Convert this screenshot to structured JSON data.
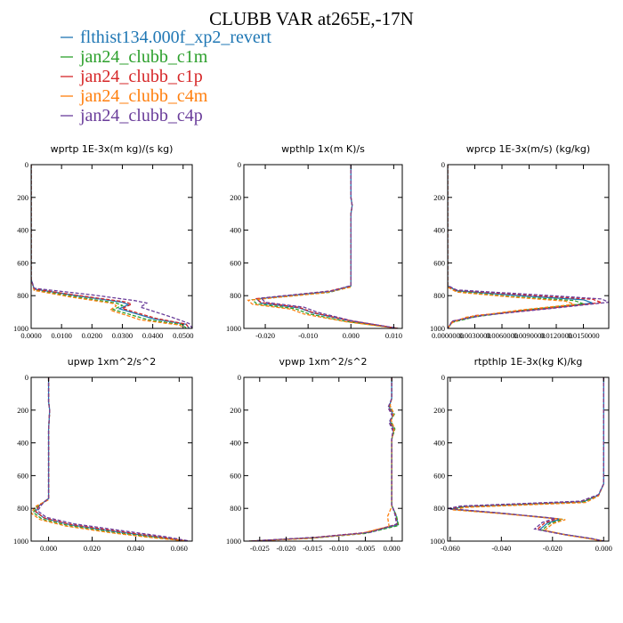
{
  "title": "CLUBB VAR at265E,-17N",
  "legend": [
    {
      "label": "flthist134.000f_xp2_revert",
      "color": "#1f77b4",
      "dash": "solid"
    },
    {
      "label": "jan24_clubb_c1m",
      "color": "#2ca02c",
      "dash": "dashed"
    },
    {
      "label": "jan24_clubb_c1p",
      "color": "#d62728",
      "dash": "dashed"
    },
    {
      "label": "jan24_clubb_c4m",
      "color": "#ff7f0e",
      "dash": "dashed"
    },
    {
      "label": "jan24_clubb_c4p",
      "color": "#6a3d9a",
      "dash": "dashed"
    }
  ],
  "chart_data": [
    {
      "type": "line",
      "title": "wprtp  1E-3x(m kg)/(s kg)",
      "xlim": [
        0,
        0.053
      ],
      "ylim": [
        1000,
        0
      ],
      "xticks": [
        0,
        0.01,
        0.02,
        0.03,
        0.04,
        0.05
      ],
      "xtick_labels": [
        "0.0000",
        "0.0100",
        "0.0200",
        "0.0300",
        "0.0400",
        "0.0500"
      ],
      "yticks": [
        0,
        200,
        400,
        600,
        800,
        1000
      ],
      "series": [
        {
          "name": "flthist134.000f_xp2_revert",
          "x": [
            0,
            0,
            0.001,
            0.015,
            0.03,
            0.032,
            0.029,
            0.04,
            0.051,
            0.052
          ],
          "y": [
            0,
            700,
            760,
            800,
            840,
            855,
            880,
            940,
            975,
            1000
          ]
        },
        {
          "name": "jan24_clubb_c1m",
          "x": [
            0,
            0,
            0.001,
            0.014,
            0.028,
            0.03,
            0.027,
            0.038,
            0.05,
            0.051
          ],
          "y": [
            0,
            700,
            765,
            805,
            845,
            860,
            885,
            945,
            978,
            1000
          ]
        },
        {
          "name": "jan24_clubb_c1p",
          "x": [
            0,
            0,
            0.001,
            0.016,
            0.031,
            0.033,
            0.03,
            0.041,
            0.051,
            0.052
          ],
          "y": [
            0,
            700,
            760,
            800,
            838,
            852,
            878,
            938,
            974,
            1000
          ]
        },
        {
          "name": "jan24_clubb_c4m",
          "x": [
            0,
            0,
            0.001,
            0.013,
            0.027,
            0.028,
            0.026,
            0.036,
            0.049,
            0.05
          ],
          "y": [
            0,
            700,
            768,
            808,
            848,
            862,
            888,
            948,
            980,
            1000
          ]
        },
        {
          "name": "jan24_clubb_c4p",
          "x": [
            0,
            0,
            0.001,
            0.02,
            0.034,
            0.038,
            0.036,
            0.046,
            0.052,
            0.053
          ],
          "y": [
            0,
            700,
            755,
            795,
            830,
            845,
            870,
            930,
            970,
            1000
          ]
        }
      ]
    },
    {
      "type": "line",
      "title": "wpthlp  1x(m K)/s",
      "xlim": [
        -0.025,
        0.012
      ],
      "ylim": [
        1000,
        0
      ],
      "xticks": [
        -0.02,
        -0.01,
        0,
        0.01
      ],
      "xtick_labels": [
        "-0.020",
        "-0.010",
        "0.000",
        "0.010"
      ],
      "yticks": [
        0,
        200,
        400,
        600,
        800,
        1000
      ],
      "series": [
        {
          "name": "flthist134.000f_xp2_revert",
          "x": [
            0,
            0,
            0.0003,
            0,
            0,
            -0.005,
            -0.022,
            -0.021,
            -0.012,
            -0.009,
            0.0,
            0.011
          ],
          "y": [
            0,
            200,
            250,
            300,
            740,
            775,
            820,
            845,
            875,
            905,
            955,
            1000
          ]
        },
        {
          "name": "jan24_clubb_c1m",
          "x": [
            0,
            0,
            0.0003,
            0,
            0,
            -0.005,
            -0.023,
            -0.022,
            -0.013,
            -0.01,
            -0.001,
            0.011
          ],
          "y": [
            0,
            200,
            250,
            300,
            745,
            780,
            825,
            850,
            880,
            910,
            958,
            1000
          ]
        },
        {
          "name": "jan24_clubb_c1p",
          "x": [
            0,
            0,
            0.0003,
            0,
            0,
            -0.005,
            -0.022,
            -0.021,
            -0.012,
            -0.009,
            0.0,
            0.011
          ],
          "y": [
            0,
            200,
            250,
            300,
            740,
            772,
            818,
            842,
            872,
            902,
            954,
            1000
          ]
        },
        {
          "name": "jan24_clubb_c4m",
          "x": [
            0,
            0,
            0.0003,
            0,
            0,
            -0.006,
            -0.024,
            -0.023,
            -0.014,
            -0.011,
            -0.001,
            0.011
          ],
          "y": [
            0,
            200,
            250,
            300,
            748,
            782,
            828,
            852,
            882,
            912,
            960,
            1000
          ]
        },
        {
          "name": "jan24_clubb_c4p",
          "x": [
            0,
            0,
            0.0003,
            0,
            0,
            -0.004,
            -0.021,
            -0.02,
            -0.011,
            -0.008,
            0.0,
            0.011
          ],
          "y": [
            0,
            200,
            250,
            300,
            738,
            770,
            815,
            840,
            870,
            900,
            952,
            1000
          ]
        }
      ]
    },
    {
      "type": "line",
      "title": "wprcp  1E-3x(m/s) (kg/kg)",
      "xlim": [
        0,
        0.0178
      ],
      "ylim": [
        1000,
        0
      ],
      "xticks": [
        0,
        0.003,
        0.006,
        0.009,
        0.012,
        0.015
      ],
      "xtick_labels": [
        "0.0000000",
        "0.0030000",
        "0.0060000",
        "0.0090000",
        "0.0120000",
        "0.0150000"
      ],
      "yticks": [
        0,
        200,
        400,
        600,
        800,
        1000
      ],
      "series": [
        {
          "name": "flthist134.000f_xp2_revert",
          "x": [
            0,
            0,
            0.001,
            0.008,
            0.015,
            0.016,
            0.01,
            0.003,
            0.0005,
            0
          ],
          "y": [
            0,
            740,
            770,
            800,
            825,
            845,
            880,
            925,
            960,
            1000
          ]
        },
        {
          "name": "jan24_clubb_c1m",
          "x": [
            0,
            0,
            0.001,
            0.007,
            0.014,
            0.015,
            0.009,
            0.003,
            0.0005,
            0
          ],
          "y": [
            0,
            745,
            775,
            805,
            830,
            850,
            885,
            930,
            963,
            1000
          ]
        },
        {
          "name": "jan24_clubb_c1p",
          "x": [
            0,
            0,
            0.001,
            0.009,
            0.016,
            0.017,
            0.011,
            0.003,
            0.0005,
            0
          ],
          "y": [
            0,
            740,
            768,
            798,
            822,
            842,
            878,
            922,
            958,
            1000
          ]
        },
        {
          "name": "jan24_clubb_c4m",
          "x": [
            0,
            0,
            0.001,
            0.007,
            0.013,
            0.014,
            0.008,
            0.002,
            0.0005,
            0
          ],
          "y": [
            0,
            748,
            778,
            808,
            833,
            853,
            888,
            932,
            965,
            1000
          ]
        },
        {
          "name": "jan24_clubb_c4p",
          "x": [
            0,
            0,
            0.001,
            0.01,
            0.017,
            0.0178,
            0.012,
            0.004,
            0.0005,
            0
          ],
          "y": [
            0,
            738,
            765,
            795,
            820,
            840,
            875,
            920,
            955,
            1000
          ]
        }
      ]
    },
    {
      "type": "line",
      "title": "upwp  1xm^2/s^2",
      "xlim": [
        -0.008,
        0.066
      ],
      "ylim": [
        1000,
        0
      ],
      "xticks": [
        0,
        0.02,
        0.04,
        0.06
      ],
      "xtick_labels": [
        "0.000",
        "0.020",
        "0.040",
        "0.060"
      ],
      "yticks": [
        0,
        200,
        400,
        600,
        800,
        1000
      ],
      "series": [
        {
          "name": "flthist134.000f_xp2_revert",
          "x": [
            0,
            0,
            0.0005,
            0,
            0,
            -0.004,
            -0.006,
            -0.002,
            0.01,
            0.03,
            0.05,
            0.064
          ],
          "y": [
            0,
            150,
            200,
            320,
            740,
            780,
            820,
            860,
            900,
            940,
            975,
            1000
          ]
        },
        {
          "name": "jan24_clubb_c1m",
          "x": [
            0,
            0,
            0.0005,
            0,
            0,
            -0.005,
            -0.007,
            -0.003,
            0.009,
            0.029,
            0.049,
            0.064
          ],
          "y": [
            0,
            150,
            200,
            320,
            745,
            785,
            825,
            865,
            905,
            945,
            978,
            1000
          ]
        },
        {
          "name": "jan24_clubb_c1p",
          "x": [
            0,
            0,
            0.0005,
            0,
            0,
            -0.004,
            -0.006,
            -0.002,
            0.01,
            0.031,
            0.051,
            0.064
          ],
          "y": [
            0,
            150,
            200,
            320,
            740,
            778,
            818,
            858,
            898,
            938,
            974,
            1000
          ]
        },
        {
          "name": "jan24_clubb_c4m",
          "x": [
            0,
            0,
            0.0005,
            0,
            0,
            -0.006,
            -0.008,
            -0.004,
            0.008,
            0.028,
            0.048,
            0.064
          ],
          "y": [
            0,
            150,
            200,
            320,
            748,
            788,
            828,
            868,
            908,
            948,
            980,
            1000
          ]
        },
        {
          "name": "jan24_clubb_c4p",
          "x": [
            0,
            0,
            0.0005,
            0,
            0,
            -0.003,
            -0.005,
            -0.001,
            0.012,
            0.033,
            0.053,
            0.065
          ],
          "y": [
            0,
            150,
            200,
            320,
            738,
            775,
            815,
            855,
            895,
            935,
            972,
            1000
          ]
        }
      ]
    },
    {
      "type": "line",
      "title": "vpwp  1xm^2/s^2",
      "xlim": [
        -0.028,
        0.002
      ],
      "ylim": [
        1000,
        0
      ],
      "xticks": [
        -0.025,
        -0.02,
        -0.015,
        -0.01,
        -0.005,
        0
      ],
      "xtick_labels": [
        "-0.025",
        "-0.020",
        "-0.015",
        "-0.010",
        "-0.005",
        "0.000"
      ],
      "yticks": [
        0,
        200,
        400,
        600,
        800,
        1000
      ],
      "series": [
        {
          "name": "flthist134.000f_xp2_revert",
          "x": [
            0,
            0,
            -0.0005,
            0.0003,
            -0.0003,
            0.0004,
            0,
            0,
            0.0008,
            0.0012,
            -0.005,
            -0.015,
            -0.027
          ],
          "y": [
            0,
            130,
            180,
            230,
            270,
            320,
            380,
            780,
            840,
            900,
            950,
            980,
            1000
          ]
        },
        {
          "name": "jan24_clubb_c1m",
          "x": [
            0,
            0,
            -0.0004,
            0.0005,
            -0.0002,
            0.0006,
            0,
            0,
            0.0009,
            0.0013,
            -0.005,
            -0.015,
            -0.027
          ],
          "y": [
            0,
            130,
            175,
            225,
            265,
            315,
            380,
            785,
            845,
            905,
            953,
            982,
            1000
          ]
        },
        {
          "name": "jan24_clubb_c1p",
          "x": [
            0,
            0,
            -0.0006,
            0.0002,
            -0.0004,
            0.0003,
            0,
            0,
            0.0007,
            0.001,
            -0.005,
            -0.015,
            -0.027
          ],
          "y": [
            0,
            130,
            182,
            232,
            272,
            322,
            380,
            778,
            838,
            898,
            948,
            978,
            1000
          ]
        },
        {
          "name": "jan24_clubb_c4m",
          "x": [
            0,
            0,
            -0.0003,
            0.0004,
            -0.0001,
            0.0005,
            0,
            0,
            -0.0008,
            -0.0005,
            -0.006,
            -0.016,
            -0.027
          ],
          "y": [
            0,
            130,
            172,
            222,
            262,
            312,
            380,
            790,
            850,
            910,
            955,
            984,
            1000
          ]
        },
        {
          "name": "jan24_clubb_c4p",
          "x": [
            0,
            0,
            -0.0007,
            0.0001,
            -0.0005,
            0.0002,
            0,
            0,
            0.0006,
            0.0009,
            -0.004,
            -0.014,
            -0.027
          ],
          "y": [
            0,
            130,
            185,
            235,
            275,
            325,
            380,
            776,
            836,
            896,
            946,
            976,
            1000
          ]
        }
      ]
    },
    {
      "type": "line",
      "title": "rtpthlp  1E-3x(kg K)/kg",
      "xlim": [
        -0.061,
        0.002
      ],
      "ylim": [
        1000,
        0
      ],
      "xticks": [
        -0.06,
        -0.04,
        -0.02,
        0
      ],
      "xtick_labels": [
        "-0.060",
        "-0.040",
        "-0.020",
        "0.000"
      ],
      "yticks": [
        0,
        200,
        400,
        600,
        800,
        1000
      ],
      "series": [
        {
          "name": "flthist134.000f_xp2_revert",
          "x": [
            0,
            0,
            -0.002,
            -0.008,
            -0.055,
            -0.06,
            -0.04,
            -0.017,
            -0.022,
            -0.025,
            -0.015,
            -0.005,
            0
          ],
          "y": [
            0,
            650,
            720,
            760,
            790,
            805,
            830,
            865,
            890,
            930,
            960,
            985,
            1000
          ]
        },
        {
          "name": "jan24_clubb_c1m",
          "x": [
            0,
            0,
            -0.002,
            -0.008,
            -0.055,
            -0.059,
            -0.039,
            -0.016,
            -0.021,
            -0.024,
            -0.015,
            -0.005,
            0
          ],
          "y": [
            0,
            650,
            722,
            762,
            792,
            807,
            832,
            867,
            892,
            932,
            962,
            986,
            1000
          ]
        },
        {
          "name": "jan24_clubb_c1p",
          "x": [
            0,
            0,
            -0.002,
            -0.009,
            -0.056,
            -0.06,
            -0.041,
            -0.018,
            -0.023,
            -0.026,
            -0.016,
            -0.005,
            0
          ],
          "y": [
            0,
            650,
            718,
            758,
            788,
            803,
            828,
            863,
            888,
            928,
            958,
            984,
            1000
          ]
        },
        {
          "name": "jan24_clubb_c4m",
          "x": [
            0,
            0,
            -0.002,
            -0.007,
            -0.054,
            -0.059,
            -0.038,
            -0.015,
            -0.02,
            -0.023,
            -0.014,
            -0.005,
            0
          ],
          "y": [
            0,
            650,
            724,
            764,
            794,
            809,
            834,
            869,
            894,
            934,
            964,
            987,
            1000
          ]
        },
        {
          "name": "jan24_clubb_c4p",
          "x": [
            0,
            0,
            -0.002,
            -0.009,
            -0.056,
            -0.061,
            -0.042,
            -0.019,
            -0.024,
            -0.027,
            -0.017,
            -0.005,
            0
          ],
          "y": [
            0,
            650,
            716,
            756,
            786,
            801,
            826,
            861,
            886,
            926,
            956,
            983,
            1000
          ]
        }
      ]
    }
  ]
}
